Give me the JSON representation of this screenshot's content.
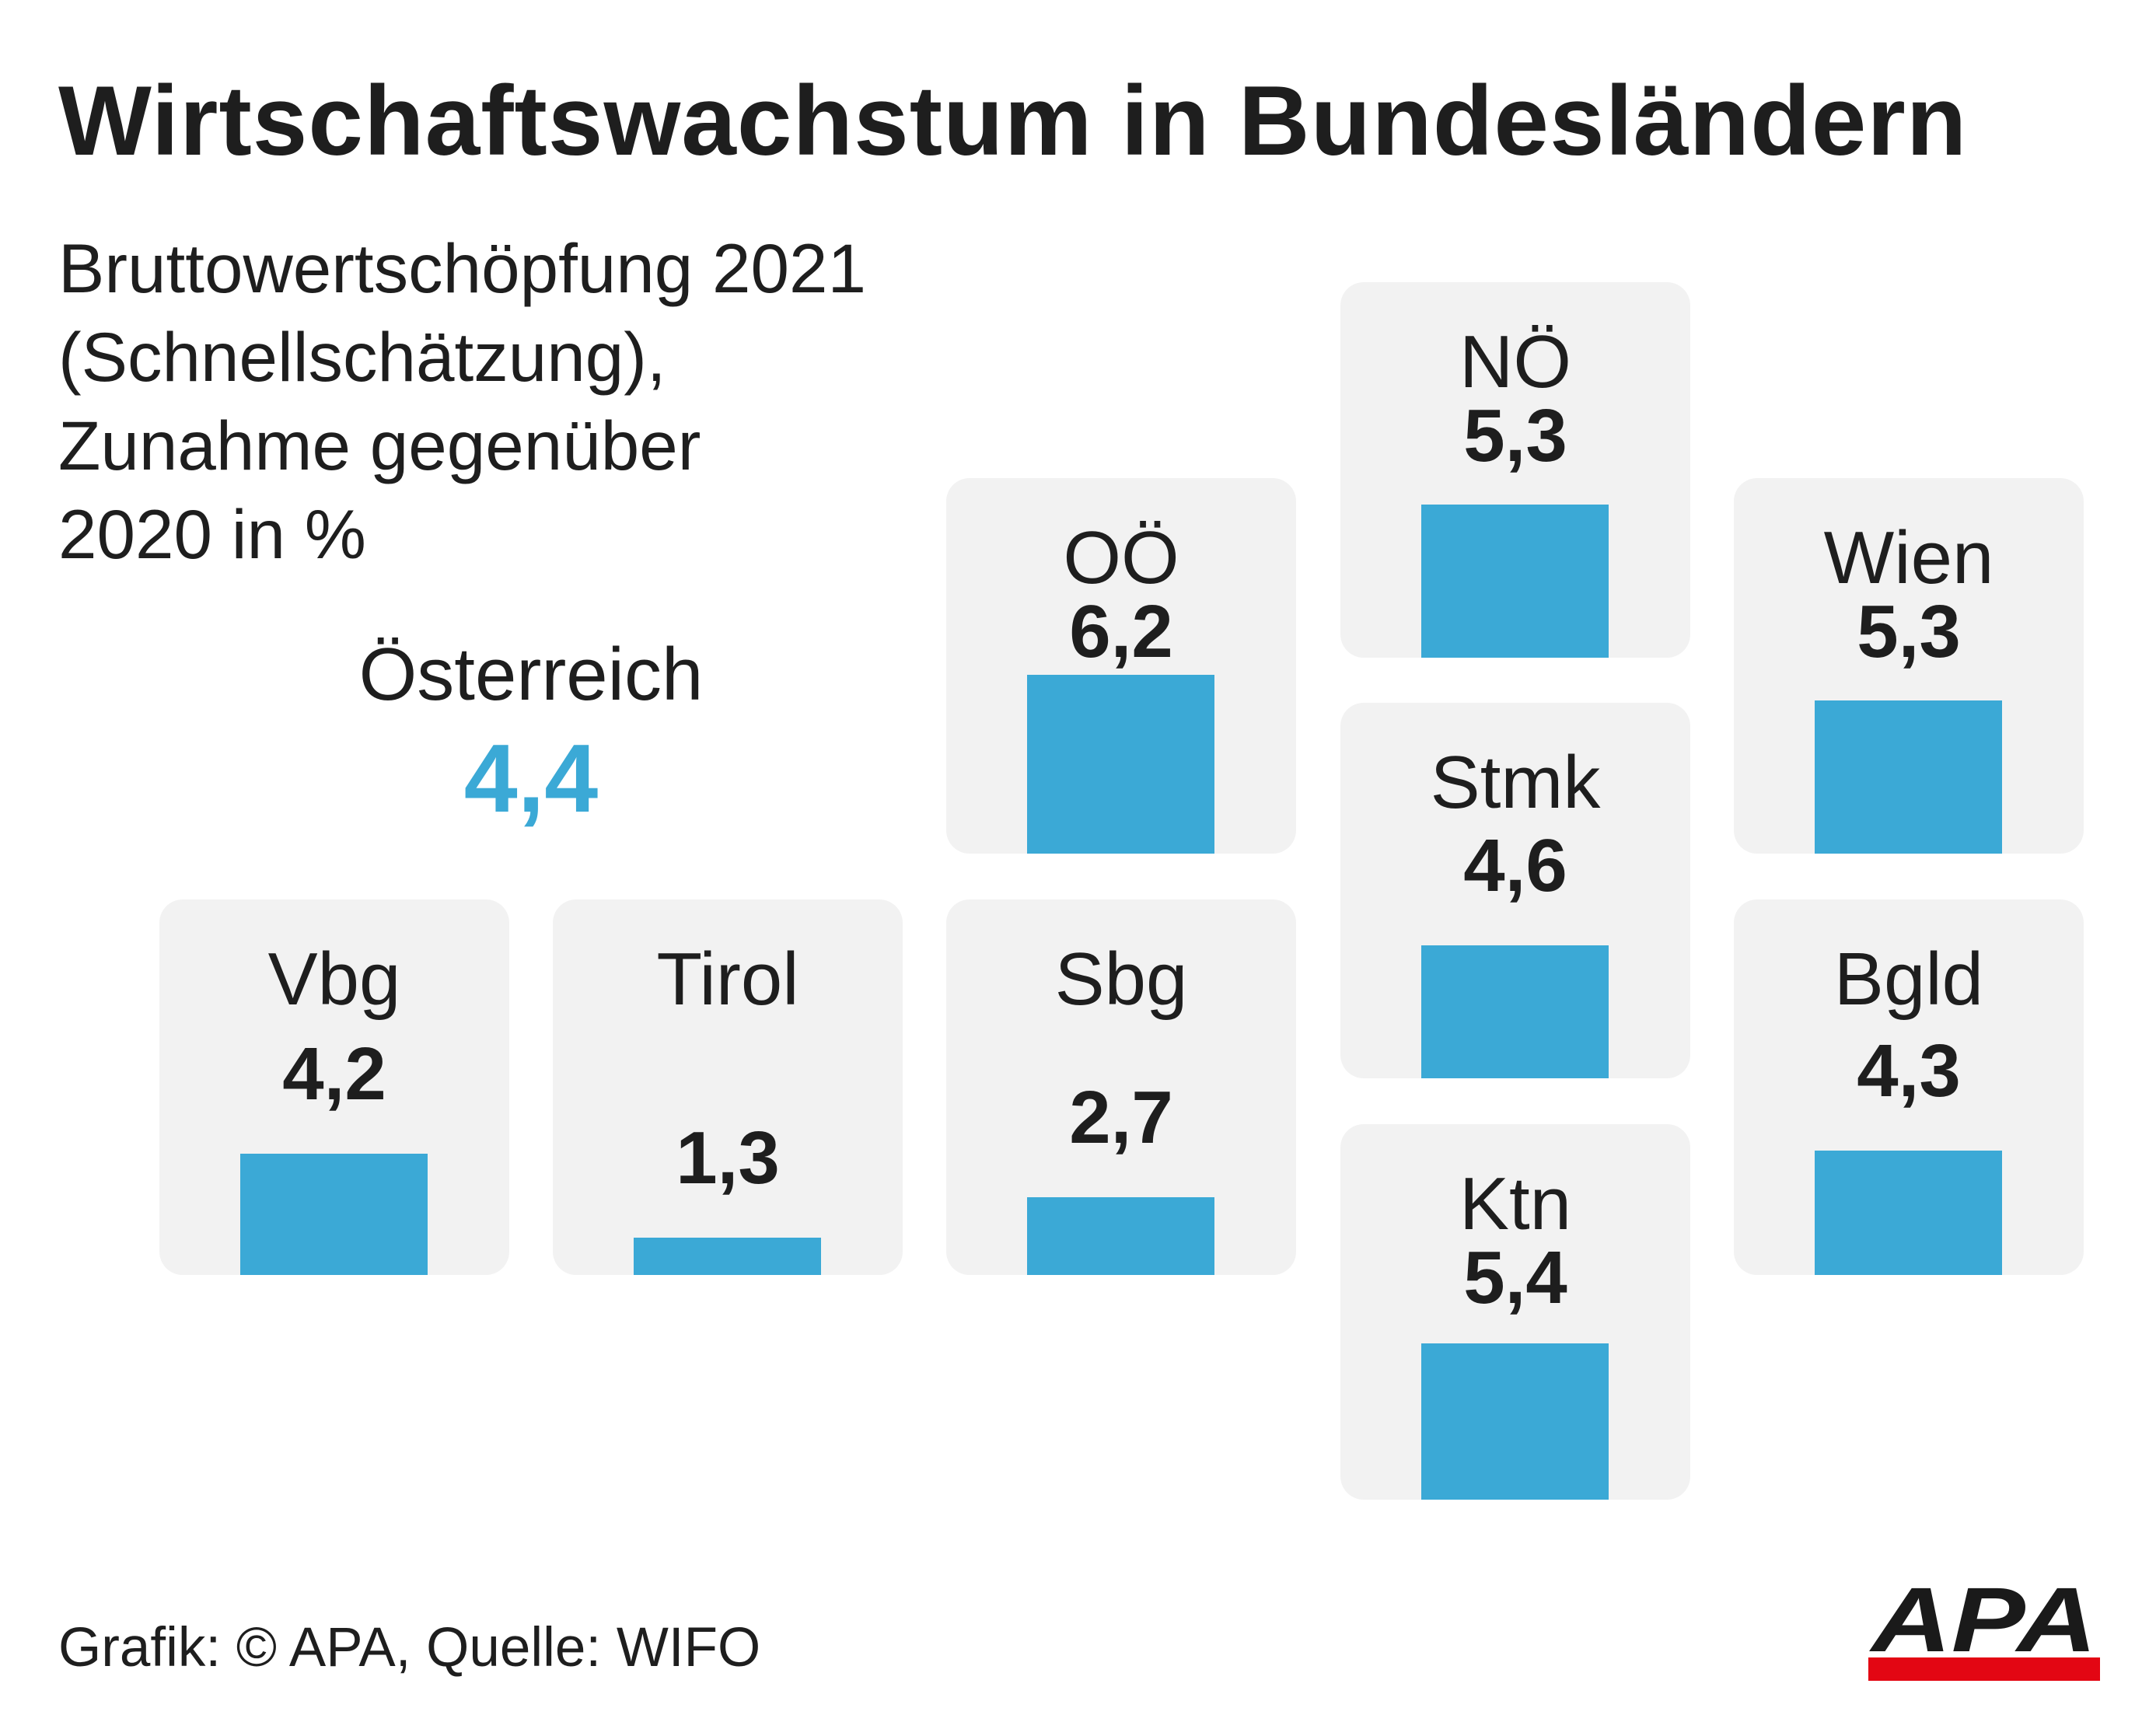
{
  "title": "Wirtschaftswachstum in Bundesländern",
  "subtitle_lines": [
    "Bruttowertschöpfung 2021",
    "(Schnellschätzung),",
    "Zunahme gegenüber",
    "2020 in %"
  ],
  "total": {
    "label": "Österreich",
    "value_label": "4,4"
  },
  "source": "Grafik: © APA, Quelle: WIFO",
  "logo": {
    "text": "APA",
    "colors": {
      "text": "#1a1a1a",
      "stripe": "#e30613"
    }
  },
  "colors": {
    "bar": "#3ba9d6",
    "total_value": "#3ba9d6",
    "tile_background": "#f2f2f2",
    "text": "#1e1e1e"
  },
  "chart_data": {
    "type": "bar",
    "categories": [
      "Vbg",
      "Tirol",
      "Sbg",
      "OÖ",
      "NÖ",
      "Stmk",
      "Ktn",
      "Wien",
      "Bgld"
    ],
    "values": [
      4.2,
      1.3,
      2.7,
      6.2,
      5.3,
      4.6,
      5.4,
      5.3,
      4.3
    ],
    "value_labels": [
      "4,2",
      "1,3",
      "2,7",
      "6,2",
      "5,3",
      "4,6",
      "5,4",
      "5,3",
      "4,3"
    ],
    "total_value": 4.4,
    "title": "Wirtschaftswachstum in Bundesländern",
    "ylim": [
      0,
      13
    ],
    "grid": false
  }
}
